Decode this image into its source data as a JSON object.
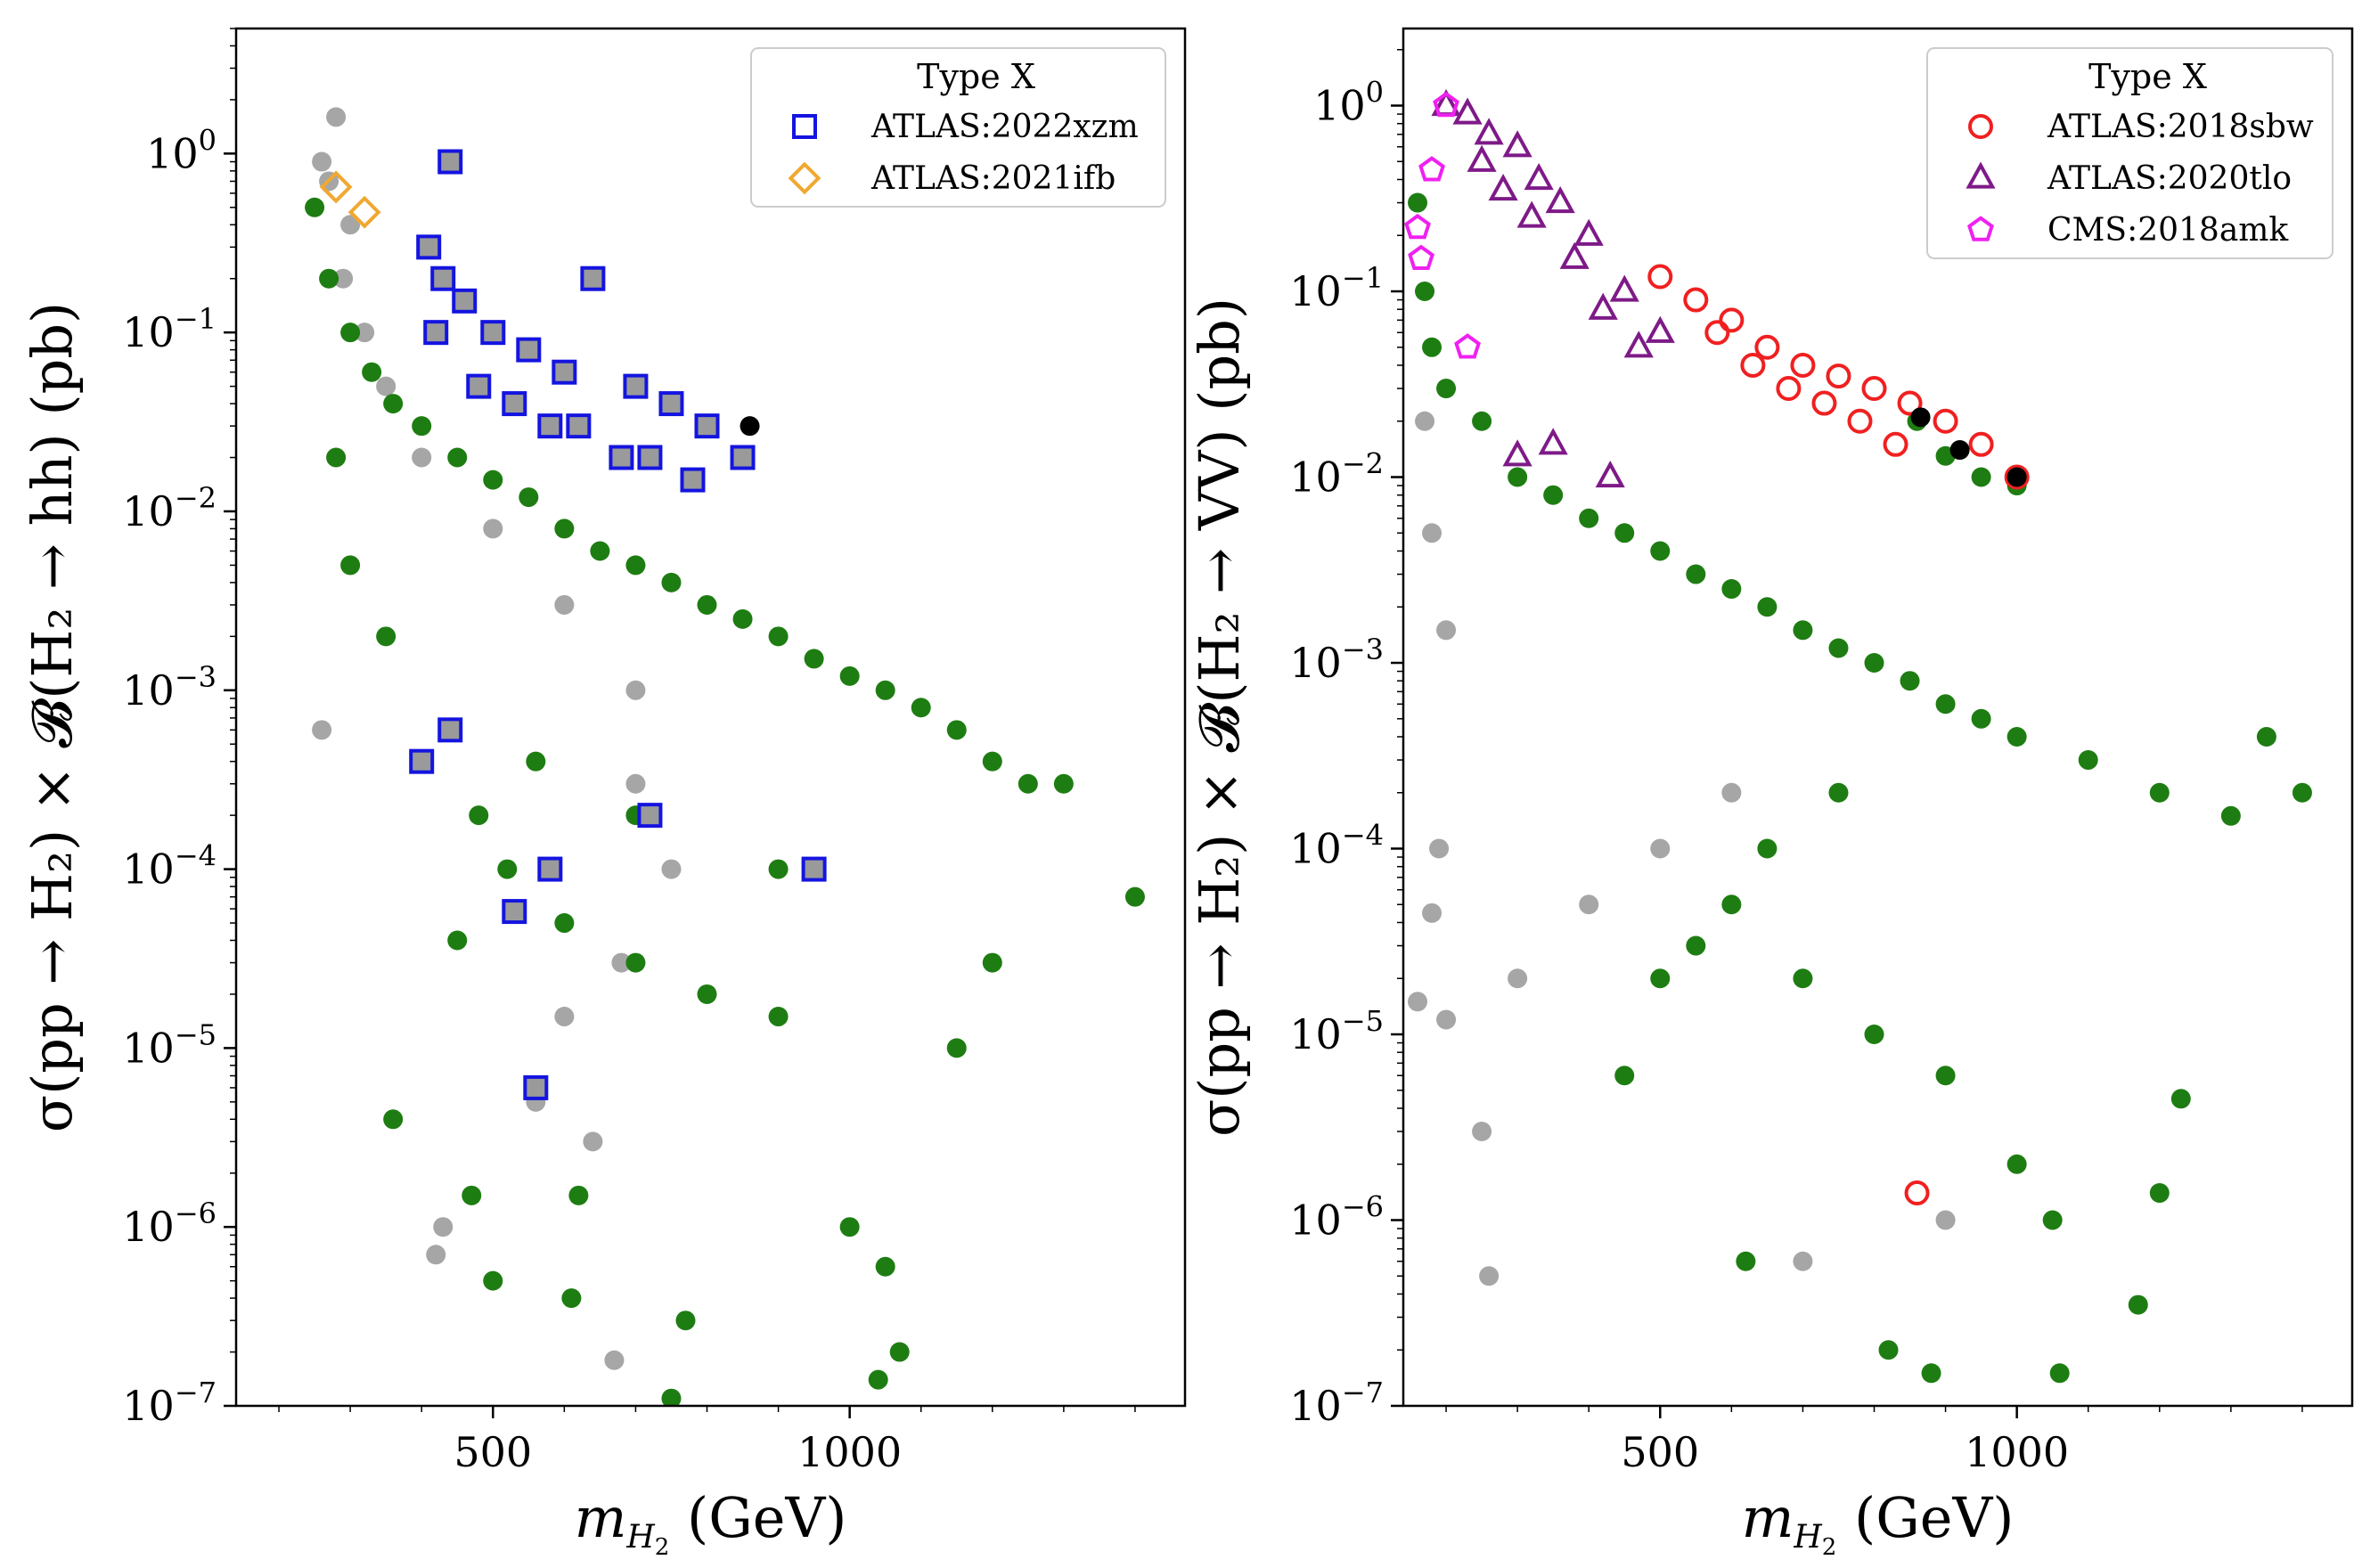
{
  "chart_data": [
    {
      "type": "scatter",
      "title": "",
      "xlabel": "m_{H_2} (GeV)",
      "ylabel": "σ(pp → H₂) × 𝓑(H₂ → hh) (pb)",
      "xlim": [
        140,
        1470
      ],
      "ylim": [
        1e-07,
        5
      ],
      "yscale": "log",
      "grid": false,
      "xticks": [
        500,
        1000
      ],
      "yticks_exp": [
        -7,
        -6,
        -5,
        -4,
        -3,
        -2,
        -1,
        0
      ],
      "legend": {
        "title": "Type X",
        "placement": "top-right",
        "entries": [
          {
            "label": "ATLAS:2022xzm",
            "marker": "square",
            "color": "#1414e0"
          },
          {
            "label": "ATLAS:2021ifb",
            "marker": "diamond",
            "color": "#f0a830"
          }
        ]
      },
      "series": [
        {
          "role": "allowed",
          "marker": "circle",
          "color": "#1e7d12",
          "points": [
            [
              250,
              0.5
            ],
            [
              270,
              0.2
            ],
            [
              300,
              0.1
            ],
            [
              330,
              0.06
            ],
            [
              360,
              0.04
            ],
            [
              400,
              0.03
            ],
            [
              450,
              0.02
            ],
            [
              500,
              0.015
            ],
            [
              550,
              0.012
            ],
            [
              600,
              0.008
            ],
            [
              650,
              0.006
            ],
            [
              700,
              0.005
            ],
            [
              750,
              0.004
            ],
            [
              800,
              0.003
            ],
            [
              850,
              0.0025
            ],
            [
              900,
              0.002
            ],
            [
              950,
              0.0015
            ],
            [
              1000,
              0.0012
            ],
            [
              1050,
              0.001
            ],
            [
              1100,
              0.0008
            ],
            [
              1150,
              0.0006
            ],
            [
              1200,
              0.0004
            ],
            [
              1300,
              0.0003
            ],
            [
              1400,
              7e-05
            ],
            [
              560,
              0.0004
            ],
            [
              520,
              0.0001
            ],
            [
              600,
              5e-05
            ],
            [
              700,
              3e-05
            ],
            [
              800,
              2e-05
            ],
            [
              900,
              1.5e-05
            ],
            [
              1000,
              1e-06
            ],
            [
              1050,
              6e-07
            ],
            [
              1070,
              2e-07
            ],
            [
              1040,
              1.4e-07
            ],
            [
              750,
              1.1e-07
            ],
            [
              770,
              3e-07
            ],
            [
              610,
              4e-07
            ],
            [
              500,
              5e-07
            ],
            [
              470,
              1.5e-06
            ],
            [
              620,
              1.5e-06
            ],
            [
              1150,
              1e-05
            ],
            [
              1200,
              3e-05
            ],
            [
              360,
              4e-06
            ],
            [
              450,
              4e-05
            ],
            [
              480,
              0.0002
            ],
            [
              350,
              0.002
            ],
            [
              300,
              0.005
            ],
            [
              280,
              0.02
            ],
            [
              700,
              0.0002
            ],
            [
              900,
              0.0001
            ],
            [
              1250,
              0.0003
            ]
          ]
        },
        {
          "role": "excluded",
          "marker": "circle",
          "color": "#a6a6a6",
          "points": [
            [
              260,
              0.9
            ],
            [
              270,
              0.7
            ],
            [
              280,
              1.6
            ],
            [
              300,
              0.4
            ],
            [
              290,
              0.2
            ],
            [
              320,
              0.1
            ],
            [
              350,
              0.05
            ],
            [
              400,
              0.02
            ],
            [
              500,
              0.008
            ],
            [
              600,
              0.003
            ],
            [
              700,
              0.001
            ],
            [
              260,
              0.0006
            ],
            [
              400,
              0.0004
            ],
            [
              430,
              1e-06
            ],
            [
              420,
              7e-07
            ],
            [
              670,
              1.8e-07
            ],
            [
              640,
              3e-06
            ],
            [
              560,
              5e-06
            ],
            [
              600,
              1.5e-05
            ],
            [
              680,
              3e-05
            ],
            [
              750,
              0.0001
            ],
            [
              700,
              0.0003
            ]
          ]
        },
        {
          "role": "ATLAS:2022xzm",
          "marker": "square",
          "color": "#1414e0",
          "points": [
            [
              440,
              0.9
            ],
            [
              410,
              0.3
            ],
            [
              430,
              0.2
            ],
            [
              460,
              0.15
            ],
            [
              500,
              0.1
            ],
            [
              550,
              0.08
            ],
            [
              600,
              0.06
            ],
            [
              640,
              0.2
            ],
            [
              700,
              0.05
            ],
            [
              750,
              0.04
            ],
            [
              800,
              0.03
            ],
            [
              850,
              0.02
            ],
            [
              420,
              0.1
            ],
            [
              480,
              0.05
            ],
            [
              530,
              0.04
            ],
            [
              580,
              0.03
            ],
            [
              620,
              0.03
            ],
            [
              680,
              0.02
            ],
            [
              720,
              0.02
            ],
            [
              780,
              0.015
            ],
            [
              400,
              0.0004
            ],
            [
              440,
              0.0006
            ],
            [
              560,
              6e-06
            ],
            [
              580,
              0.0001
            ],
            [
              950,
              0.0001
            ],
            [
              720,
              0.0002
            ],
            [
              530,
              5.8e-05
            ]
          ]
        },
        {
          "role": "ATLAS:2021ifb",
          "marker": "diamond",
          "color": "#f0a830",
          "points": [
            [
              280,
              0.65
            ],
            [
              320,
              0.47
            ]
          ]
        },
        {
          "role": "highlight",
          "marker": "circle",
          "color": "#000000",
          "points": [
            [
              860,
              0.03
            ]
          ]
        }
      ]
    },
    {
      "type": "scatter",
      "title": "",
      "xlabel": "m_{H_2} (GeV)",
      "ylabel": "σ(pp → H₂) × 𝓑(H₂ → VV) (pb)",
      "xlim": [
        140,
        1470
      ],
      "ylim": [
        1e-07,
        2.6
      ],
      "yscale": "log",
      "grid": false,
      "xticks": [
        500,
        1000
      ],
      "yticks_exp": [
        -7,
        -6,
        -5,
        -4,
        -3,
        -2,
        -1,
        0
      ],
      "legend": {
        "title": "Type X",
        "placement": "top-right",
        "entries": [
          {
            "label": "ATLAS:2018sbw",
            "marker": "circle-open",
            "color": "#f02020"
          },
          {
            "label": "ATLAS:2020tlo",
            "marker": "triangle",
            "color": "#7e1a88"
          },
          {
            "label": "CMS:2018amk",
            "marker": "pentagon",
            "color": "#f020f0"
          }
        ]
      },
      "series": [
        {
          "role": "allowed",
          "marker": "circle",
          "color": "#1e7d12",
          "points": [
            [
              160,
              0.3
            ],
            [
              170,
              0.1
            ],
            [
              180,
              0.05
            ],
            [
              200,
              0.03
            ],
            [
              250,
              0.02
            ],
            [
              300,
              0.01
            ],
            [
              350,
              0.008
            ],
            [
              400,
              0.006
            ],
            [
              450,
              0.005
            ],
            [
              500,
              0.004
            ],
            [
              550,
              0.003
            ],
            [
              600,
              0.0025
            ],
            [
              650,
              0.002
            ],
            [
              700,
              0.0015
            ],
            [
              750,
              0.0012
            ],
            [
              800,
              0.001
            ],
            [
              850,
              0.0008
            ],
            [
              900,
              0.0006
            ],
            [
              950,
              0.0005
            ],
            [
              1000,
              0.0004
            ],
            [
              1100,
              0.0003
            ],
            [
              1200,
              0.0002
            ],
            [
              1300,
              0.00015
            ],
            [
              1400,
              0.0002
            ],
            [
              1350,
              0.0004
            ],
            [
              860,
              0.02
            ],
            [
              900,
              0.013
            ],
            [
              950,
              0.01
            ],
            [
              1000,
              0.009
            ],
            [
              600,
              5e-05
            ],
            [
              700,
              2e-05
            ],
            [
              800,
              1e-05
            ],
            [
              900,
              6e-06
            ],
            [
              1000,
              2e-06
            ],
            [
              1050,
              1e-06
            ],
            [
              1060,
              1.5e-07
            ],
            [
              880,
              1.5e-07
            ],
            [
              820,
              2e-07
            ],
            [
              1170,
              3.5e-07
            ],
            [
              1200,
              1.4e-06
            ],
            [
              1230,
              4.5e-06
            ],
            [
              620,
              6e-07
            ],
            [
              450,
              6e-06
            ],
            [
              500,
              2e-05
            ],
            [
              550,
              3e-05
            ],
            [
              650,
              0.0001
            ],
            [
              750,
              0.0002
            ]
          ]
        },
        {
          "role": "excluded",
          "marker": "circle",
          "color": "#a6a6a6",
          "points": [
            [
              170,
              0.02
            ],
            [
              180,
              0.005
            ],
            [
              200,
              0.0015
            ],
            [
              190,
              0.0001
            ],
            [
              180,
              4.5e-05
            ],
            [
              160,
              1.5e-05
            ],
            [
              200,
              1.2e-05
            ],
            [
              250,
              3e-06
            ],
            [
              260,
              5e-07
            ],
            [
              300,
              2e-05
            ],
            [
              400,
              5e-05
            ],
            [
              500,
              0.0001
            ],
            [
              600,
              0.0002
            ],
            [
              700,
              6e-07
            ],
            [
              900,
              1e-06
            ]
          ]
        },
        {
          "role": "ATLAS:2018sbw",
          "marker": "circle-open",
          "color": "#f02020",
          "points": [
            [
              500,
              0.12
            ],
            [
              550,
              0.09
            ],
            [
              600,
              0.07
            ],
            [
              650,
              0.05
            ],
            [
              700,
              0.04
            ],
            [
              750,
              0.035
            ],
            [
              800,
              0.03
            ],
            [
              850,
              0.025
            ],
            [
              900,
              0.02
            ],
            [
              950,
              0.015
            ],
            [
              1000,
              0.01
            ],
            [
              580,
              0.06
            ],
            [
              630,
              0.04
            ],
            [
              680,
              0.03
            ],
            [
              730,
              0.025
            ],
            [
              780,
              0.02
            ],
            [
              830,
              0.015
            ],
            [
              860,
              1.4e-06
            ]
          ]
        },
        {
          "role": "ATLAS:2020tlo",
          "marker": "triangle",
          "color": "#7e1a88",
          "points": [
            [
              200,
              1.0
            ],
            [
              230,
              0.9
            ],
            [
              260,
              0.7
            ],
            [
              300,
              0.6
            ],
            [
              330,
              0.4
            ],
            [
              360,
              0.3
            ],
            [
              400,
              0.2
            ],
            [
              450,
              0.1
            ],
            [
              500,
              0.06
            ],
            [
              250,
              0.5
            ],
            [
              280,
              0.35
            ],
            [
              320,
              0.25
            ],
            [
              380,
              0.15
            ],
            [
              420,
              0.08
            ],
            [
              470,
              0.05
            ],
            [
              300,
              0.013
            ],
            [
              350,
              0.015
            ],
            [
              430,
              0.01
            ]
          ]
        },
        {
          "role": "CMS:2018amk",
          "marker": "pentagon",
          "color": "#f020f0",
          "points": [
            [
              200,
              1.0
            ],
            [
              180,
              0.45
            ],
            [
              160,
              0.22
            ],
            [
              165,
              0.15
            ],
            [
              230,
              0.05
            ]
          ]
        },
        {
          "role": "highlight",
          "marker": "circle",
          "color": "#000000",
          "points": [
            [
              865,
              0.021
            ],
            [
              920,
              0.014
            ],
            [
              1000,
              0.01
            ]
          ]
        }
      ]
    }
  ]
}
